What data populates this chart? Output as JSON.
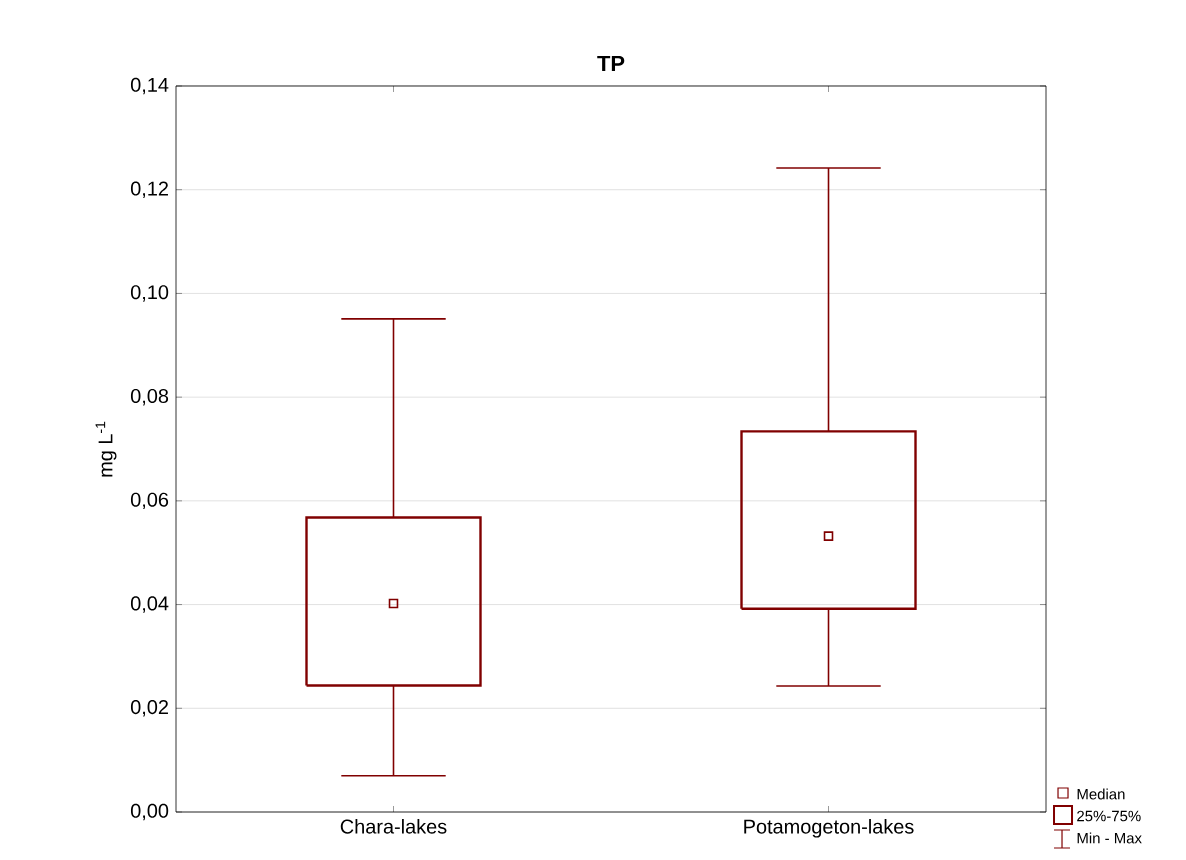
{
  "chart_data": {
    "type": "box",
    "title": "TP",
    "ylabel": "mg L$^{-1}$",
    "categories": [
      "Chara-lakes",
      "Potamogeton-lakes"
    ],
    "series": [
      {
        "color": "#800000",
        "boxes": [
          {
            "low": 0.007,
            "q1": 0.0244,
            "median": 0.0402,
            "q3": 0.0568,
            "high": 0.0951
          },
          {
            "low": 0.0243,
            "q1": 0.0392,
            "median": 0.0532,
            "q3": 0.0734,
            "high": 0.1242
          }
        ]
      }
    ],
    "ylim": [
      0,
      0.14
    ],
    "yticks": [
      {
        "value": 0,
        "label": "0,00"
      },
      {
        "value": 0.02,
        "label": "0,02"
      },
      {
        "value": 0.04,
        "label": "0,04"
      },
      {
        "value": 0.06,
        "label": "0,06"
      },
      {
        "value": 0.08,
        "label": "0,08"
      },
      {
        "value": 0.1,
        "label": "0,10"
      },
      {
        "value": 0.12,
        "label": "0,12"
      },
      {
        "value": 0.14,
        "label": "0,14"
      }
    ],
    "grid": "y",
    "annotations": [
      "Median",
      "25%-75%",
      "Min - Max"
    ]
  }
}
